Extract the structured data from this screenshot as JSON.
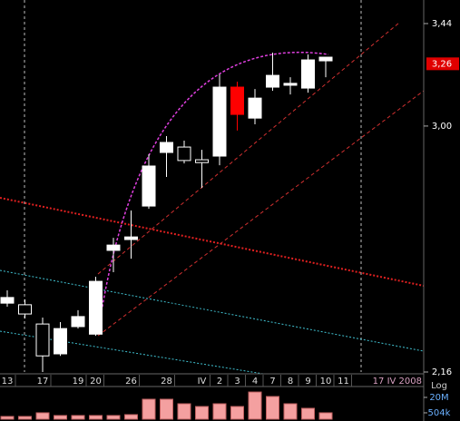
{
  "chart_data": {
    "type": "candlestick",
    "log_scale": true,
    "categories": [
      "13",
      null,
      "17",
      null,
      "19",
      "20",
      null,
      "26",
      null,
      "28",
      null,
      "IV",
      "2",
      "3",
      "4",
      "7",
      "8",
      "9",
      "10",
      "11"
    ],
    "date_label": "17 IV 2008",
    "series": [
      {
        "open": [
          2.368,
          2.363,
          2.303,
          2.213,
          2.295,
          2.272,
          2.541,
          2.578,
          2.696,
          2.896,
          2.917,
          2.868,
          2.882,
          3.16,
          3.032,
          3.16,
          3.168,
          3.156,
          3.273,
          null
        ],
        "high": [
          2.409,
          2.38,
          2.323,
          2.309,
          2.346,
          2.453,
          2.584,
          2.68,
          2.889,
          2.96,
          2.942,
          2.906,
          3.214,
          3.183,
          3.152,
          3.309,
          3.202,
          3.301,
          3.29,
          null
        ],
        "low": [
          2.357,
          2.32,
          2.16,
          2.207,
          2.289,
          2.267,
          2.468,
          2.513,
          2.686,
          2.803,
          2.854,
          2.762,
          2.847,
          2.982,
          3.007,
          3.145,
          3.129,
          3.137,
          3.202,
          null
        ],
        "close": [
          2.386,
          2.334,
          2.207,
          2.289,
          2.326,
          2.438,
          2.559,
          2.587,
          2.844,
          2.935,
          2.865,
          2.857,
          3.16,
          3.047,
          3.114,
          3.21,
          3.176,
          3.277,
          3.289,
          null
        ],
        "fill_colors": [
          "#ffffff",
          "#000000",
          "#000000",
          "#ffffff",
          "#ffffff",
          "#ffffff",
          "#ffffff",
          "#ffffff",
          "#ffffff",
          "#ffffff",
          "#000000",
          "#000000",
          "#ffffff",
          "#ff0000",
          "#ffffff",
          "#ffffff",
          "#ffffff",
          "#ffffff",
          "#ffffff",
          null
        ]
      }
    ],
    "ylim": [
      2.16,
      3.55
    ],
    "yticks": [
      {
        "value": 3.44,
        "label": "3,44"
      },
      {
        "value": 3.0,
        "label": "3,00"
      },
      {
        "value": 2.16,
        "label": "2,16"
      }
    ],
    "last_price": {
      "value": 3.26,
      "label": "3,26"
    },
    "volume": {
      "values": [
        211000,
        211000,
        504000,
        263000,
        263000,
        263000,
        263000,
        325000,
        12900000,
        12900000,
        4370000,
        2270000,
        4370000,
        2270000,
        72000000,
        24700000,
        4370000,
        1480000,
        504000,
        null
      ],
      "color": "#f4a0a0",
      "log_scale": true,
      "scale_label": "Log",
      "vlim": [
        110000,
        268000000
      ],
      "vticks": [
        {
          "value": 20000000,
          "label": "20M"
        },
        {
          "value": 504000,
          "label": "504k"
        }
      ]
    }
  }
}
